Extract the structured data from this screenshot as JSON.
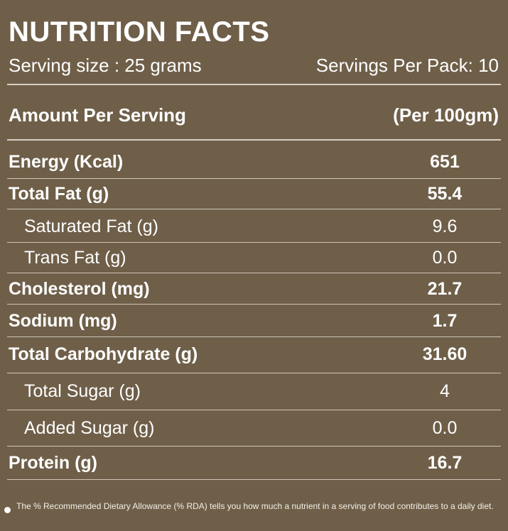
{
  "header": {
    "title": "NUTRITION FACTS",
    "serving_size": "Serving size : 25 grams",
    "servings_per_pack": "Servings Per Pack: 10"
  },
  "table": {
    "column_label": "Amount Per Serving",
    "column_value_label": "(Per 100gm)",
    "rows": [
      {
        "label": "Energy (Kcal)",
        "value": "651"
      },
      {
        "label": "Total Fat (g)",
        "value": "55.4"
      },
      {
        "label": "Saturated Fat (g)",
        "value": "9.6"
      },
      {
        "label": "Trans Fat (g)",
        "value": "0.0"
      },
      {
        "label": "Cholesterol (mg)",
        "value": "21.7"
      },
      {
        "label": "Sodium  (mg)",
        "value": "1.7"
      },
      {
        "label": "Total Carbohydrate (g)",
        "value": "31.60"
      },
      {
        "label": "Total Sugar (g)",
        "value": "4"
      },
      {
        "label": "Added Sugar (g)",
        "value": "0.0"
      },
      {
        "label": "Protein (g)",
        "value": "16.7"
      }
    ]
  },
  "footnote": "The % Recommended Dietary Allowance (% RDA) tells you how much a nutrient in a serving of food contributes to a daily diet.",
  "colors": {
    "background": "#6f5f49",
    "text": "#ffffff",
    "divider": "#d8d0c4"
  }
}
